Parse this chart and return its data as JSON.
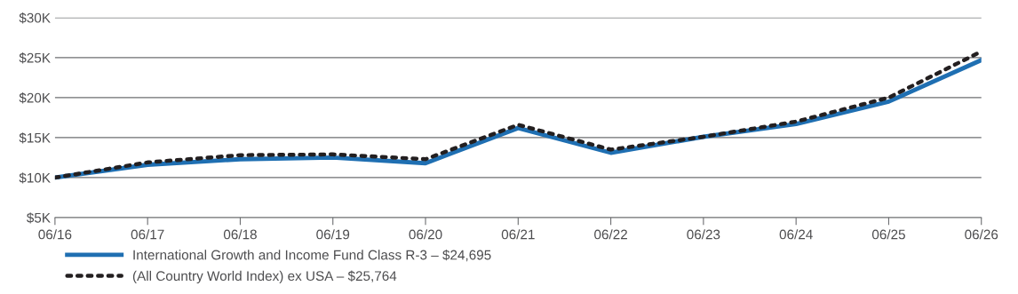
{
  "chart_data": {
    "type": "line",
    "categories": [
      "06/16",
      "06/17",
      "06/18",
      "06/19",
      "06/20",
      "06/21",
      "06/22",
      "06/23",
      "06/24",
      "06/25",
      "06/26"
    ],
    "series": [
      {
        "name": "International Growth and Income Fund Class R-3 – $24,695",
        "color": "#1f6fb2",
        "line_style": "solid",
        "values": [
          10000,
          11600,
          12300,
          12500,
          11800,
          16200,
          13100,
          15100,
          16700,
          19500,
          24695
        ]
      },
      {
        "name": "(All Country World Index) ex USA – $25,764",
        "color": "#231f20",
        "line_style": "dotted",
        "values": [
          10000,
          11900,
          12800,
          12900,
          12300,
          16600,
          13500,
          15100,
          17000,
          20000,
          25764
        ]
      }
    ],
    "ylim": [
      5000,
      30000
    ],
    "yticks": [
      {
        "value": 5000,
        "label": "$5K"
      },
      {
        "value": 10000,
        "label": "$10K"
      },
      {
        "value": 15000,
        "label": "$15K"
      },
      {
        "value": 20000,
        "label": "$20K"
      },
      {
        "value": 25000,
        "label": "$25K"
      },
      {
        "value": 30000,
        "label": "$30K"
      }
    ],
    "grid": "y",
    "legend": "bottom left",
    "marker": "none"
  }
}
